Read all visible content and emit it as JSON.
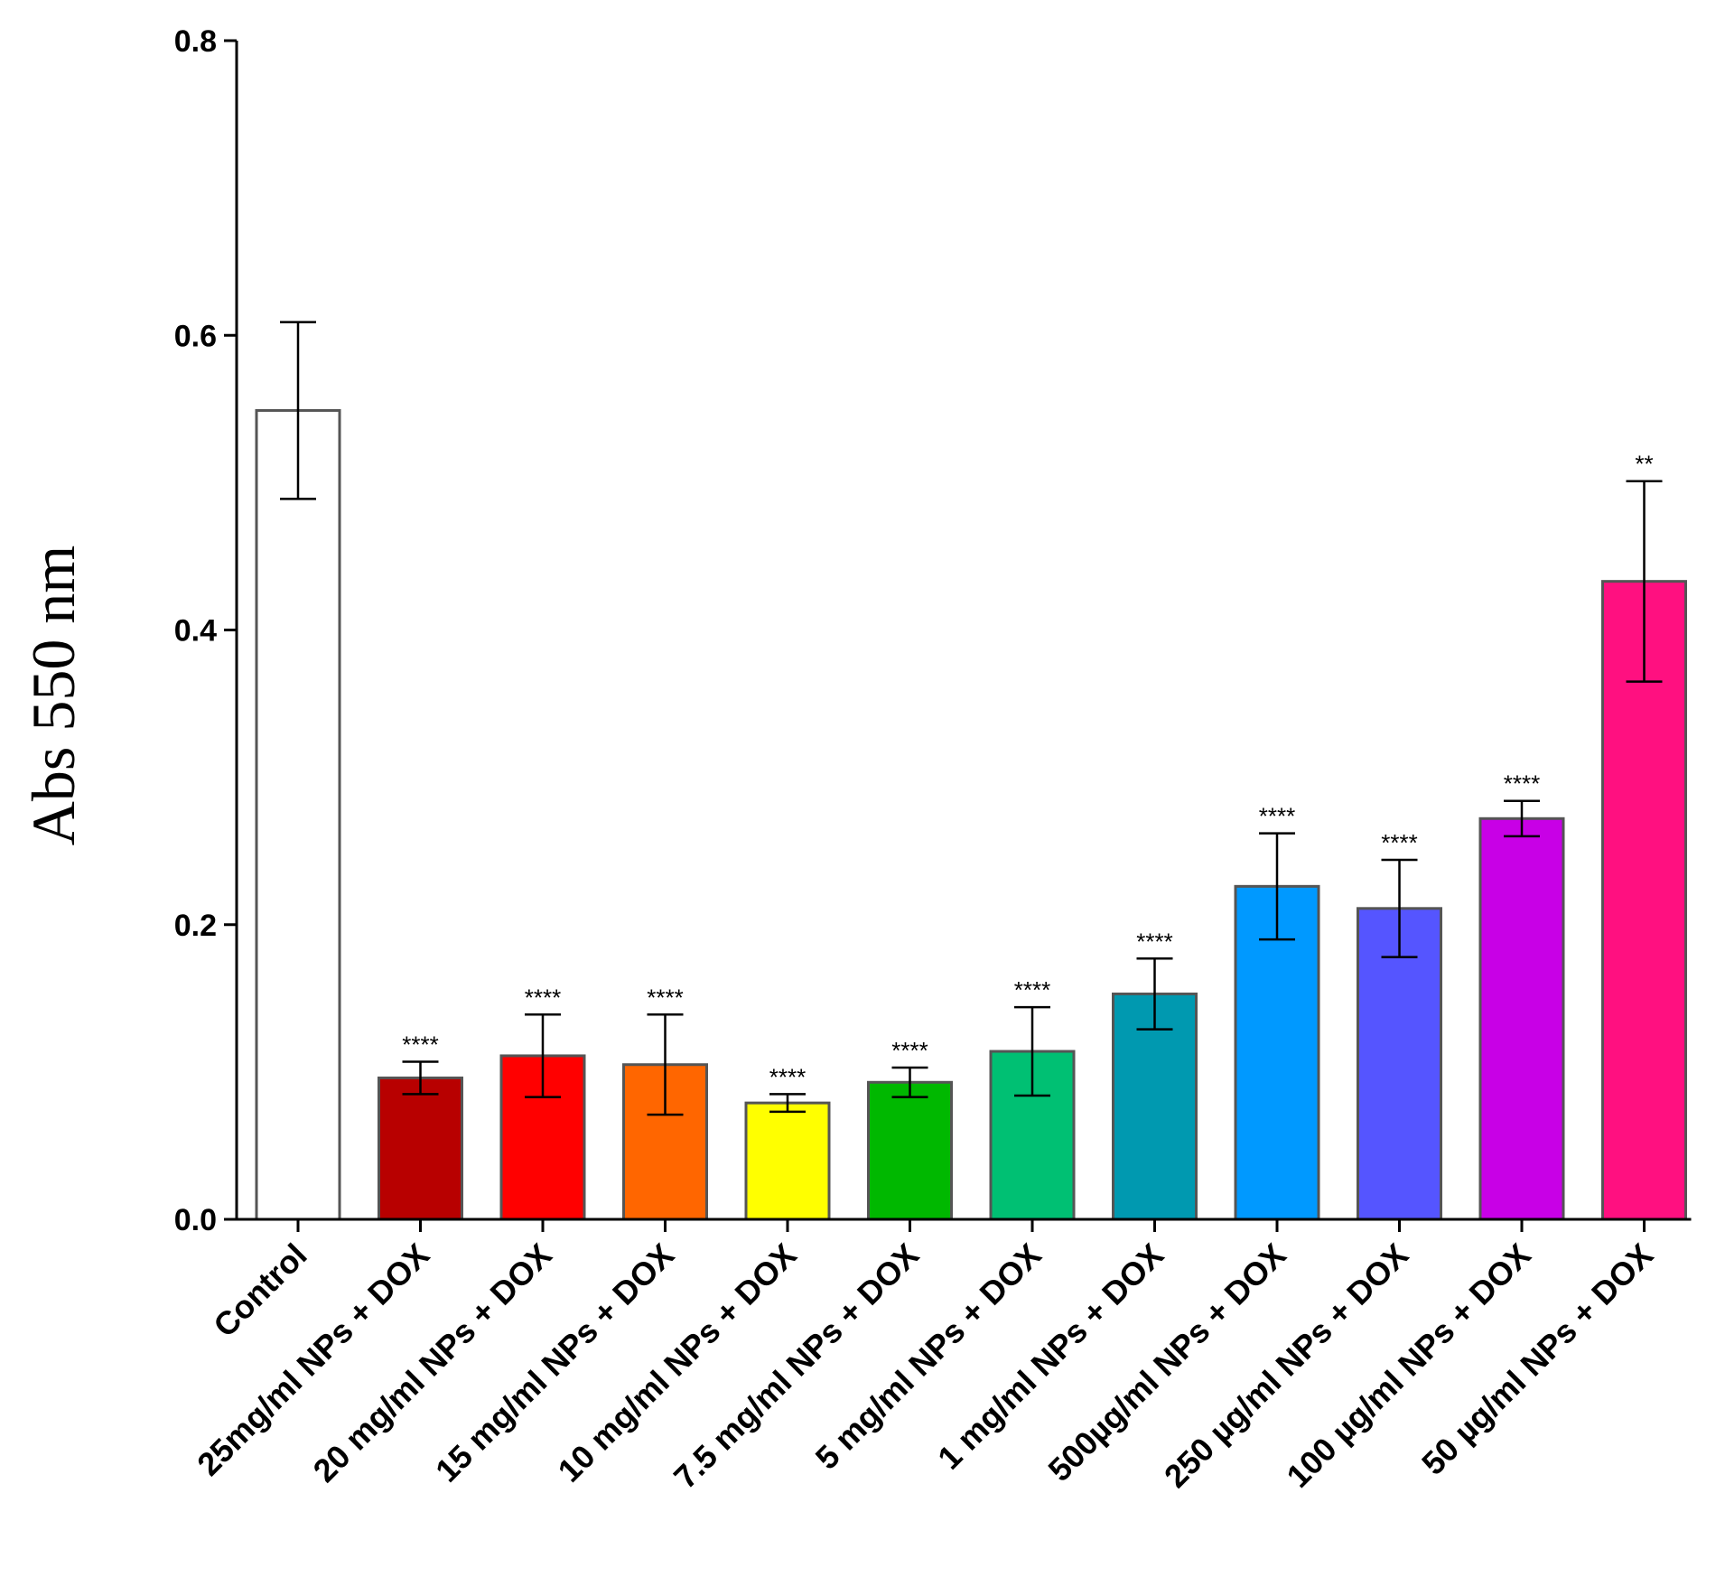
{
  "chart_data": {
    "type": "bar",
    "title": "",
    "xlabel": "",
    "ylabel": "Abs 550 nm",
    "ylim": [
      0,
      0.8
    ],
    "yticks": [
      "0.0",
      "0.2",
      "0.4",
      "0.6",
      "0.8"
    ],
    "categories": [
      "Control",
      "25mg/ml NPs + DOX",
      "20 mg/ml NPs + DOX",
      "15 mg/ml NPs + DOX",
      "10 mg/ml NPs + DOX",
      "7.5 mg/ml NPs + DOX",
      "5 mg/ml NPs + DOX",
      "1 mg/ml NPs + DOX",
      "500µg/ml NPs + DOX",
      "250 µg/ml NPs + DOX",
      "100 µg/ml NPs + DOX",
      "50 µg/ml NPs + DOX"
    ],
    "values": [
      0.549,
      0.096,
      0.111,
      0.105,
      0.079,
      0.093,
      0.114,
      0.153,
      0.226,
      0.211,
      0.272,
      0.433
    ],
    "errors": [
      0.06,
      0.011,
      0.028,
      0.034,
      0.006,
      0.01,
      0.03,
      0.024,
      0.036,
      0.033,
      0.012,
      0.068
    ],
    "significance": [
      "",
      "****",
      "****",
      "****",
      "****",
      "****",
      "****",
      "****",
      "****",
      "****",
      "****",
      "**"
    ],
    "colors": [
      "#ffffff",
      "#b80000",
      "#ff0000",
      "#ff6600",
      "#ffff00",
      "#00b800",
      "#00c073",
      "#0099b0",
      "#0099ff",
      "#5555ff",
      "#c800e6",
      "#ff1080"
    ]
  }
}
